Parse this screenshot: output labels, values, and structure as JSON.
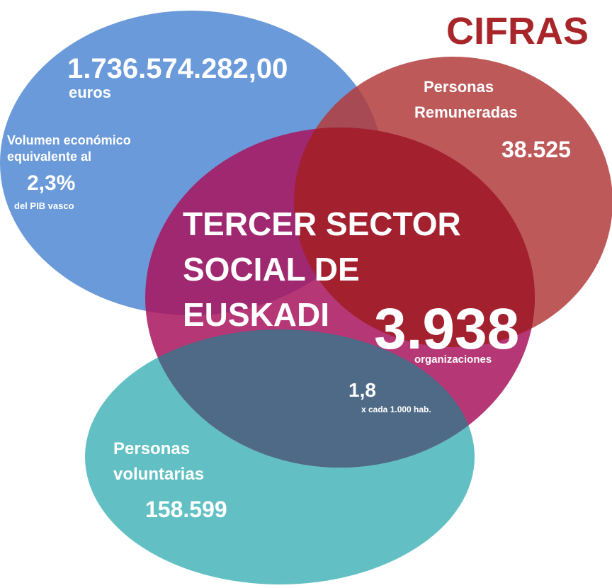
{
  "header": {
    "title": "CIFRAS"
  },
  "economic": {
    "amount": "1.736.574.282,00",
    "unit": "euros",
    "description": [
      "Volumen económico",
      "equivalente al"
    ],
    "percent": "2,3%",
    "percent_note": "del PIB vasco"
  },
  "paid": {
    "label": [
      "Personas",
      "Remuneradas"
    ],
    "value": "38.525"
  },
  "center": {
    "title": [
      "TERCER SECTOR",
      "SOCIAL DE",
      "EUSKADI"
    ],
    "value": "3.938",
    "unit": "organizaciones",
    "ratio": "1,8",
    "ratio_note": "x cada 1.000 hab."
  },
  "volunteers": {
    "label": [
      "Personas",
      "voluntarias"
    ],
    "value": "158.599"
  }
}
